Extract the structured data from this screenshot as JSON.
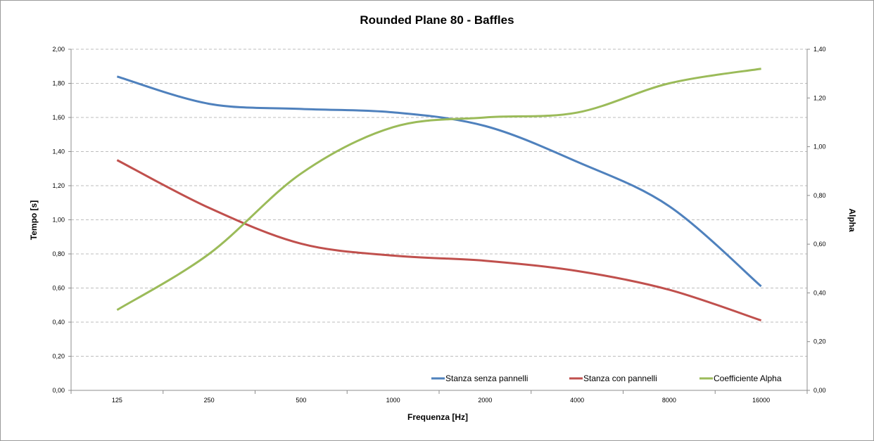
{
  "chart_data": {
    "type": "line",
    "title": "Rounded Plane 80 - Baffles",
    "xlabel": "Frequenza [Hz]",
    "ylabel": "Tempo [s]",
    "y2label": "Alpha",
    "categories": [
      "125",
      "250",
      "500",
      "1000",
      "2000",
      "4000",
      "8000",
      "16000"
    ],
    "ylim": [
      0,
      2.0
    ],
    "y2lim": [
      0,
      1.4
    ],
    "yticks": [
      "0,00",
      "0,20",
      "0,40",
      "0,60",
      "0,80",
      "1,00",
      "1,20",
      "1,40",
      "1,60",
      "1,80",
      "2,00"
    ],
    "y2ticks": [
      "0,00",
      "0,20",
      "0,40",
      "0,60",
      "0,80",
      "1,00",
      "1,20",
      "1,40"
    ],
    "grid": true,
    "legend_position": "bottom-right",
    "series": [
      {
        "name": "Stanza senza pannelli",
        "axis": "left",
        "color": "#4F81BD",
        "values": [
          1.84,
          1.68,
          1.65,
          1.63,
          1.55,
          1.34,
          1.08,
          0.61
        ]
      },
      {
        "name": "Stanza con pannelli",
        "axis": "left",
        "color": "#C0504D",
        "values": [
          1.35,
          1.07,
          0.86,
          0.79,
          0.76,
          0.7,
          0.59,
          0.41
        ]
      },
      {
        "name": "Coefficiente Alpha",
        "axis": "right",
        "color": "#9BBB59",
        "values": [
          0.33,
          0.56,
          0.89,
          1.08,
          1.12,
          1.14,
          1.26,
          1.32
        ]
      }
    ]
  }
}
